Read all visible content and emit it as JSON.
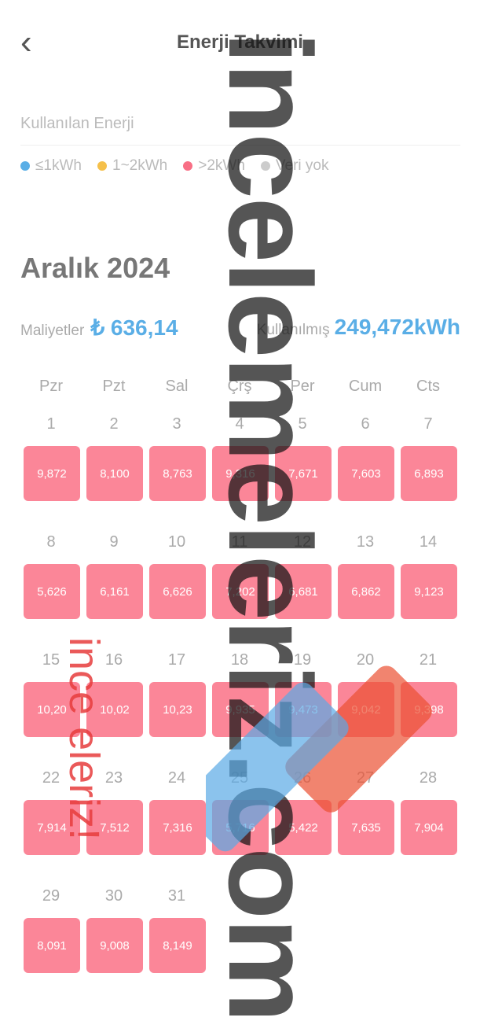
{
  "header": {
    "title": "Enerji Takvimi"
  },
  "section_label": "Kullanılan Enerji",
  "legend": [
    {
      "label": "≤1kWh",
      "color": "#5aaee6"
    },
    {
      "label": "1~2kWh",
      "color": "#f5c04a"
    },
    {
      "label": ">2kWh",
      "color": "#f86f85"
    },
    {
      "label": "Veri yok",
      "color": "#cccccc"
    }
  ],
  "month": "Aralık 2024",
  "stats": {
    "cost_label": "Maliyetler",
    "cost_value": "₺ 636,14",
    "used_label": "Kullanılmış",
    "used_value": "249,472kWh"
  },
  "weekdays": [
    "Pzr",
    "Pzt",
    "Sal",
    "Çrş",
    "Per",
    "Cum",
    "Cts"
  ],
  "days": [
    {
      "num": "1",
      "value": "9,872"
    },
    {
      "num": "2",
      "value": "8,100"
    },
    {
      "num": "3",
      "value": "8,763"
    },
    {
      "num": "4",
      "value": "9,316"
    },
    {
      "num": "5",
      "value": "7,671"
    },
    {
      "num": "6",
      "value": "7,603"
    },
    {
      "num": "7",
      "value": "6,893"
    },
    {
      "num": "8",
      "value": "5,626"
    },
    {
      "num": "9",
      "value": "6,161"
    },
    {
      "num": "10",
      "value": "6,626"
    },
    {
      "num": "11",
      "value": "7,202"
    },
    {
      "num": "12",
      "value": "6,681"
    },
    {
      "num": "13",
      "value": "6,862"
    },
    {
      "num": "14",
      "value": "9,123"
    },
    {
      "num": "15",
      "value": "10,20"
    },
    {
      "num": "16",
      "value": "10,02"
    },
    {
      "num": "17",
      "value": "10,23"
    },
    {
      "num": "18",
      "value": "9,935"
    },
    {
      "num": "19",
      "value": "9,473"
    },
    {
      "num": "20",
      "value": "9,042"
    },
    {
      "num": "21",
      "value": "9,398"
    },
    {
      "num": "22",
      "value": "7,914"
    },
    {
      "num": "23",
      "value": "7,512"
    },
    {
      "num": "24",
      "value": "7,316"
    },
    {
      "num": "25",
      "value": "5,716"
    },
    {
      "num": "26",
      "value": "5,422"
    },
    {
      "num": "27",
      "value": "7,635"
    },
    {
      "num": "28",
      "value": "7,904"
    },
    {
      "num": "29",
      "value": "8,091"
    },
    {
      "num": "30",
      "value": "9,008"
    },
    {
      "num": "31",
      "value": "8,149"
    }
  ],
  "watermark": {
    "main": "incelemeleriz.com",
    "small": "ince eleriz!"
  }
}
